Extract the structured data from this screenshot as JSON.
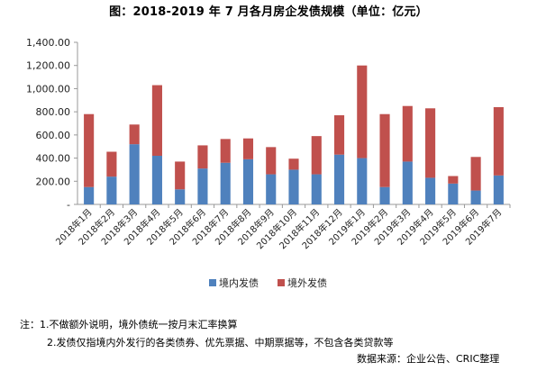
{
  "title": "图：2018-2019 年 7 月各月房企发债规模（单位：亿元）",
  "chart_data": {
    "type": "bar",
    "stacked": true,
    "categories": [
      "2018年1月",
      "2018年2月",
      "2018年3月",
      "2018年4月",
      "2018年5月",
      "2018年6月",
      "2018年7月",
      "2018年8月",
      "2018年9月",
      "2018年10月",
      "2018年11月",
      "2018年12月",
      "2019年1月",
      "2019年2月",
      "2019年3月",
      "2019年4月",
      "2019年5月",
      "2019年6月",
      "2019年7月"
    ],
    "series": [
      {
        "name": "境内发债",
        "color": "#4f81bd",
        "values": [
          150,
          240,
          520,
          420,
          130,
          310,
          360,
          390,
          260,
          300,
          260,
          430,
          400,
          150,
          370,
          230,
          180,
          120,
          250
        ]
      },
      {
        "name": "境外发债",
        "color": "#c0504d",
        "values": [
          630,
          215,
          170,
          610,
          240,
          200,
          205,
          180,
          235,
          95,
          330,
          340,
          800,
          630,
          480,
          600,
          65,
          290,
          590
        ]
      }
    ],
    "ylim": [
      0,
      1400
    ],
    "yticks": [
      0,
      200,
      400,
      600,
      800,
      1000,
      1200,
      1400
    ],
    "ytick_labels": [
      "-",
      "200.00",
      "400.00",
      "600.00",
      "800.00",
      "1,000.00",
      "1,200.00",
      "1,400.00"
    ],
    "grid": false,
    "legend_position": "bottom"
  },
  "notes": {
    "line1": "注：1.不做额外说明，境外债统一按月末汇率换算",
    "line2": "2.发债仅指境内外发行的各类债券、优先票据、中期票据等，不包含各类贷款等",
    "source": "数据来源：企业公告、CRIC整理"
  }
}
